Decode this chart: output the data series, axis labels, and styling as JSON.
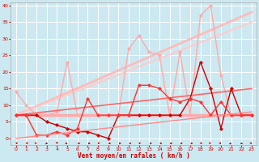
{
  "xlabel": "Vent moyen/en rafales ( km/h )",
  "background_color": "#cce8f0",
  "grid_color": "#ffffff",
  "xlim": [
    -0.5,
    23.5
  ],
  "ylim": [
    -2,
    41
  ],
  "yticks": [
    0,
    5,
    10,
    15,
    20,
    25,
    30,
    35,
    40
  ],
  "xticks": [
    0,
    1,
    2,
    3,
    4,
    5,
    6,
    7,
    8,
    9,
    10,
    11,
    12,
    13,
    14,
    15,
    16,
    17,
    18,
    19,
    20,
    21,
    22,
    23
  ],
  "series": [
    {
      "x": [
        0,
        1,
        2,
        3,
        4,
        5,
        6,
        7,
        8,
        9,
        10,
        11,
        12,
        13,
        14,
        15,
        16,
        17,
        18,
        19,
        20,
        21,
        22,
        23
      ],
      "y": [
        7,
        7,
        7,
        7,
        7,
        7,
        7,
        7,
        7,
        7,
        7,
        7,
        7,
        7,
        7,
        7,
        7,
        7,
        7,
        7,
        7,
        7,
        7,
        7
      ],
      "color": "#ffaaaa",
      "linewidth": 2.5,
      "marker": null,
      "linestyle": "-"
    },
    {
      "x": [
        0,
        23
      ],
      "y": [
        7,
        38
      ],
      "color": "#ffbbbb",
      "linewidth": 2.0,
      "marker": null,
      "linestyle": "-"
    },
    {
      "x": [
        0,
        23
      ],
      "y": [
        7,
        35
      ],
      "color": "#ffcccc",
      "linewidth": 1.5,
      "marker": null,
      "linestyle": "-"
    },
    {
      "x": [
        0,
        1,
        2,
        3,
        4,
        5,
        6,
        7,
        8,
        9,
        10,
        11,
        12,
        13,
        14,
        15,
        16,
        17,
        18,
        19,
        20,
        21,
        22,
        23
      ],
      "y": [
        14,
        10,
        7,
        7,
        8,
        23,
        7,
        7,
        7,
        7,
        7,
        27,
        31,
        26,
        25,
        7,
        26,
        7,
        37,
        40,
        19,
        7,
        7,
        7
      ],
      "color": "#ffaaaa",
      "linewidth": 1.0,
      "marker": "D",
      "markersize": 2,
      "linestyle": "-"
    },
    {
      "x": [
        0,
        23
      ],
      "y": [
        7,
        15
      ],
      "color": "#ff6666",
      "linewidth": 1.2,
      "marker": null,
      "linestyle": "-"
    },
    {
      "x": [
        0,
        1,
        2,
        3,
        4,
        5,
        6,
        7,
        8,
        9,
        10,
        11,
        12,
        13,
        14,
        15,
        16,
        17,
        18,
        19,
        20,
        21,
        22,
        23
      ],
      "y": [
        7,
        7,
        7,
        5,
        4,
        3,
        2,
        2,
        1,
        0,
        7,
        7,
        7,
        7,
        7,
        7,
        7,
        12,
        23,
        15,
        3,
        15,
        7,
        7
      ],
      "color": "#cc0000",
      "linewidth": 1.0,
      "marker": "D",
      "markersize": 2,
      "linestyle": "-"
    },
    {
      "x": [
        0,
        1,
        2,
        3,
        4,
        5,
        6,
        7,
        8,
        9,
        10,
        11,
        12,
        13,
        14,
        15,
        16,
        17,
        18,
        19,
        20,
        21,
        22,
        23
      ],
      "y": [
        7,
        7,
        1,
        1,
        2,
        1,
        3,
        12,
        7,
        7,
        7,
        7,
        16,
        16,
        15,
        12,
        11,
        12,
        11,
        7,
        11,
        7,
        7,
        7
      ],
      "color": "#ff3333",
      "linewidth": 1.0,
      "marker": "D",
      "markersize": 2,
      "linestyle": "-"
    },
    {
      "x": [
        0,
        23
      ],
      "y": [
        0,
        8
      ],
      "color": "#ff8888",
      "linewidth": 1.0,
      "marker": null,
      "linestyle": "-"
    }
  ],
  "wind_arrows": {
    "y_data": -1.5,
    "directions": [
      [
        0.3,
        0.3
      ],
      [
        0.3,
        0.3
      ],
      [
        -0.3,
        0.3
      ],
      [
        -0.2,
        -0.3
      ],
      [
        0.0,
        -0.4
      ],
      [
        -0.3,
        0.0
      ],
      [
        0.4,
        0.0
      ],
      [
        0.4,
        0.0
      ],
      [
        0.3,
        0.3
      ],
      [
        0.4,
        0.0
      ],
      [
        0.4,
        0.0
      ],
      [
        0.4,
        0.0
      ],
      [
        0.3,
        0.3
      ],
      [
        0.4,
        0.0
      ],
      [
        0.4,
        0.0
      ],
      [
        0.4,
        0.0
      ],
      [
        0.4,
        0.0
      ],
      [
        0.4,
        0.0
      ],
      [
        0.3,
        0.3
      ],
      [
        -0.3,
        0.3
      ],
      [
        -0.3,
        0.3
      ],
      [
        -0.3,
        -0.3
      ],
      [
        0.2,
        -0.3
      ],
      [
        -0.3,
        0.3
      ]
    ]
  }
}
